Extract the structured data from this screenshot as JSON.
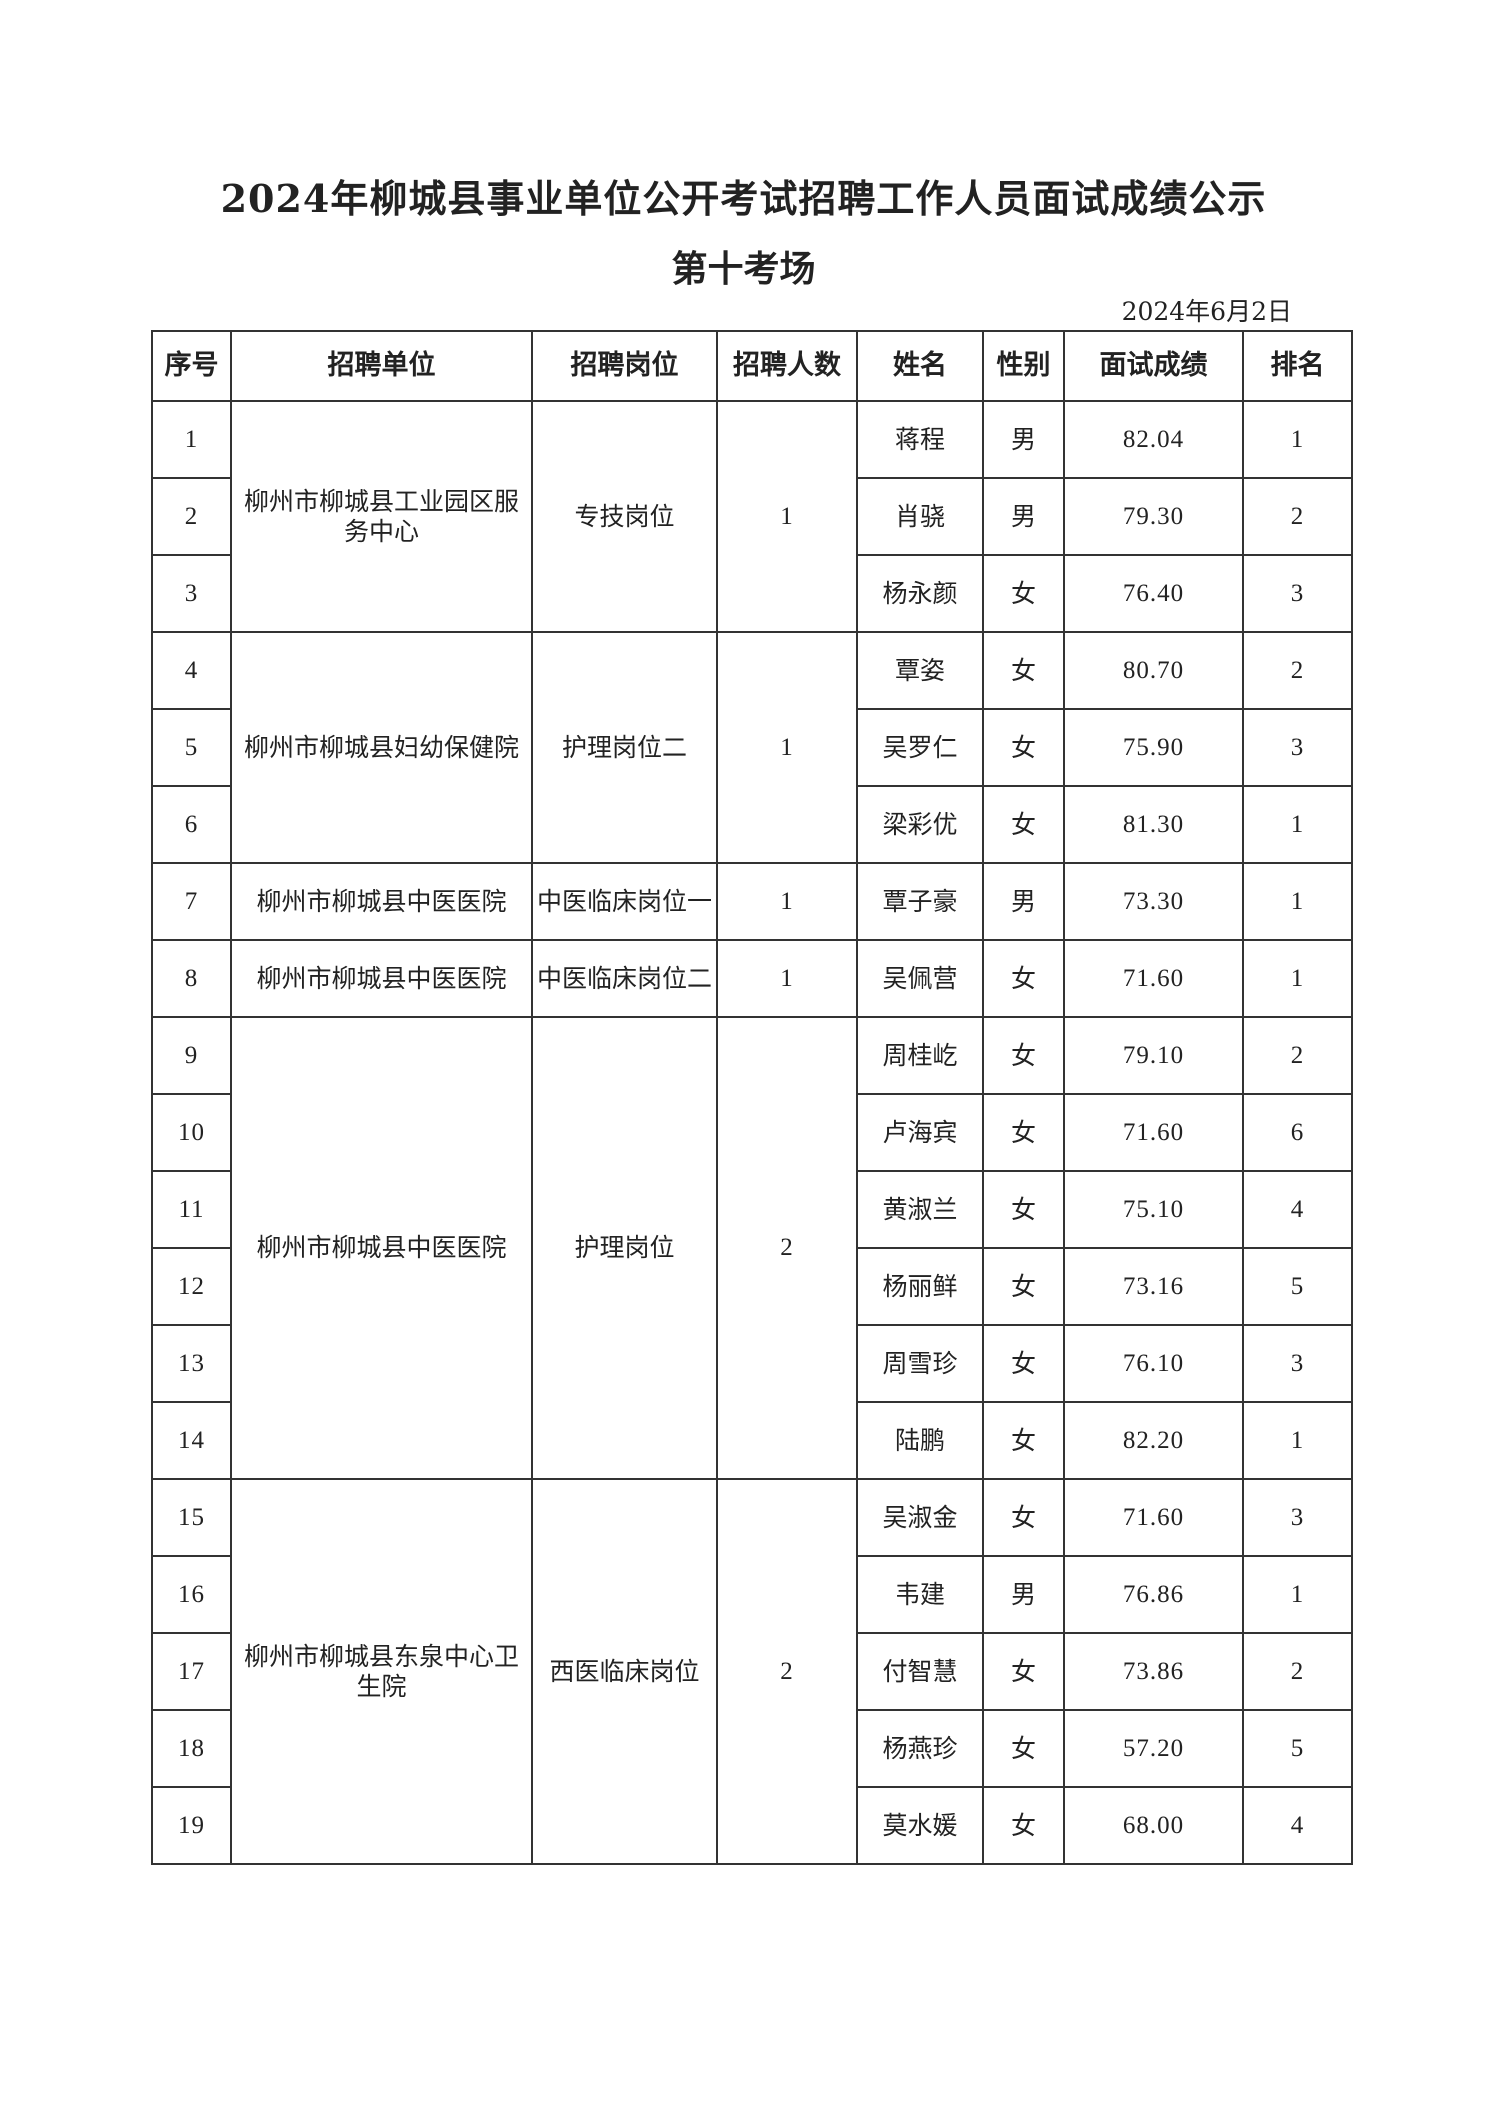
{
  "title": "2024年柳城县事业单位公开考试招聘工作人员面试成绩公示",
  "subtitle": "第十考场",
  "date": "2024年6月2日",
  "columns": [
    "序号",
    "招聘单位",
    "招聘岗位",
    "招聘人数",
    "姓名",
    "性别",
    "面试成绩",
    "排名"
  ],
  "groups": [
    {
      "unit": "柳州市柳城县工业园区服务中心",
      "position": "专技岗位",
      "count": "1",
      "rows": [
        {
          "no": "1",
          "name": "蒋程",
          "gender": "男",
          "score": "82.04",
          "rank": "1"
        },
        {
          "no": "2",
          "name": "肖骁",
          "gender": "男",
          "score": "79.30",
          "rank": "2"
        },
        {
          "no": "3",
          "name": "杨永颜",
          "gender": "女",
          "score": "76.40",
          "rank": "3"
        }
      ]
    },
    {
      "unit": "柳州市柳城县妇幼保健院",
      "position": "护理岗位二",
      "count": "1",
      "rows": [
        {
          "no": "4",
          "name": "覃姿",
          "gender": "女",
          "score": "80.70",
          "rank": "2"
        },
        {
          "no": "5",
          "name": "吴罗仁",
          "gender": "女",
          "score": "75.90",
          "rank": "3"
        },
        {
          "no": "6",
          "name": "梁彩优",
          "gender": "女",
          "score": "81.30",
          "rank": "1"
        }
      ]
    },
    {
      "unit": "柳州市柳城县中医医院",
      "position": "中医临床岗位一",
      "count": "1",
      "rows": [
        {
          "no": "7",
          "name": "覃子豪",
          "gender": "男",
          "score": "73.30",
          "rank": "1"
        }
      ]
    },
    {
      "unit": "柳州市柳城县中医医院",
      "position": "中医临床岗位二",
      "count": "1",
      "rows": [
        {
          "no": "8",
          "name": "吴佩营",
          "gender": "女",
          "score": "71.60",
          "rank": "1"
        }
      ]
    },
    {
      "unit": "柳州市柳城县中医医院",
      "position": "护理岗位",
      "count": "2",
      "rows": [
        {
          "no": "9",
          "name": "周桂屹",
          "gender": "女",
          "score": "79.10",
          "rank": "2"
        },
        {
          "no": "10",
          "name": "卢海宾",
          "gender": "女",
          "score": "71.60",
          "rank": "6"
        },
        {
          "no": "11",
          "name": "黄淑兰",
          "gender": "女",
          "score": "75.10",
          "rank": "4"
        },
        {
          "no": "12",
          "name": "杨丽鲜",
          "gender": "女",
          "score": "73.16",
          "rank": "5"
        },
        {
          "no": "13",
          "name": "周雪珍",
          "gender": "女",
          "score": "76.10",
          "rank": "3"
        },
        {
          "no": "14",
          "name": "陆鹏",
          "gender": "女",
          "score": "82.20",
          "rank": "1"
        }
      ]
    },
    {
      "unit": "柳州市柳城县东泉中心卫生院",
      "position": "西医临床岗位",
      "count": "2",
      "rows": [
        {
          "no": "15",
          "name": "吴淑金",
          "gender": "女",
          "score": "71.60",
          "rank": "3"
        },
        {
          "no": "16",
          "name": "韦建",
          "gender": "男",
          "score": "76.86",
          "rank": "1"
        },
        {
          "no": "17",
          "name": "付智慧",
          "gender": "女",
          "score": "73.86",
          "rank": "2"
        },
        {
          "no": "18",
          "name": "杨燕珍",
          "gender": "女",
          "score": "57.20",
          "rank": "5"
        },
        {
          "no": "19",
          "name": "莫水媛",
          "gender": "女",
          "score": "68.00",
          "rank": "4"
        }
      ]
    }
  ]
}
